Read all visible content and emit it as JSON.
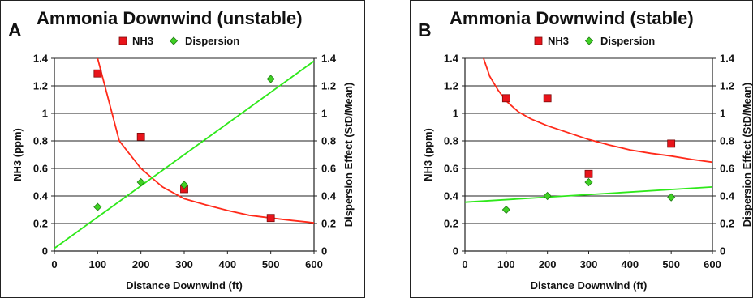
{
  "chart_data": [
    {
      "type": "scatter",
      "panel_label": "A",
      "title": "Ammonia Downwind (unstable)",
      "xlabel": "Distance Downwind (ft)",
      "ylabel": "NH3 (ppm)",
      "y2label": "Dispersion Effect (StD/Mean)",
      "xlim": [
        0,
        600
      ],
      "ylim": [
        0,
        1.4
      ],
      "y2lim": [
        0,
        1.4
      ],
      "xticks": [
        0,
        100,
        200,
        300,
        400,
        500,
        600
      ],
      "yticks": [
        "0",
        "0.2",
        "0.4",
        "0.6",
        "0.8",
        "1",
        "1.2",
        "1.4"
      ],
      "grid": "horizontal",
      "legend_position": "top",
      "series": [
        {
          "name": "NH3",
          "marker": "square",
          "color": "#e8141b",
          "axis": "left",
          "x": [
            100,
            200,
            300,
            500
          ],
          "y": [
            1.29,
            0.83,
            0.45,
            0.24
          ]
        },
        {
          "name": "Dispersion",
          "marker": "diamond",
          "color": "#3fd124",
          "axis": "right",
          "x": [
            100,
            200,
            300,
            500
          ],
          "y": [
            0.32,
            0.5,
            0.48,
            1.25
          ]
        }
      ],
      "trendlines": [
        {
          "series": "NH3",
          "kind": "power",
          "color": "#ff2a1a",
          "x": [
            100,
            150,
            200,
            250,
            300,
            350,
            400,
            450,
            500,
            550,
            600
          ],
          "y": [
            1.4,
            0.8,
            0.6,
            0.465,
            0.38,
            0.335,
            0.295,
            0.26,
            0.24,
            0.222,
            0.205
          ]
        },
        {
          "series": "Dispersion",
          "kind": "linear",
          "color": "#2ee81a",
          "x": [
            0,
            600
          ],
          "y": [
            0.02,
            1.38
          ]
        }
      ]
    },
    {
      "type": "scatter",
      "panel_label": "B",
      "title": "Ammonia Downwind (stable)",
      "xlabel": "Distance Downwind (ft)",
      "ylabel": "NH3 (ppm)",
      "y2label": "Dispersion Effect (StD/Mean)",
      "xlim": [
        0,
        600
      ],
      "ylim": [
        0,
        1.4
      ],
      "y2lim": [
        0,
        1.4
      ],
      "xticks": [
        0,
        100,
        200,
        300,
        400,
        500,
        600
      ],
      "yticks": [
        "0",
        "0.2",
        "0.4",
        "0.6",
        "0.8",
        "1",
        "1.2",
        "1.4"
      ],
      "grid": "horizontal",
      "legend_position": "top",
      "series": [
        {
          "name": "NH3",
          "marker": "square",
          "color": "#e8141b",
          "axis": "left",
          "x": [
            100,
            200,
            300,
            500
          ],
          "y": [
            1.11,
            1.11,
            0.56,
            0.78
          ]
        },
        {
          "name": "Dispersion",
          "marker": "diamond",
          "color": "#3fd124",
          "axis": "right",
          "x": [
            100,
            200,
            300,
            500
          ],
          "y": [
            0.3,
            0.4,
            0.5,
            0.39
          ]
        }
      ],
      "trendlines": [
        {
          "series": "NH3",
          "kind": "power",
          "color": "#ff2a1a",
          "x": [
            45,
            60,
            80,
            100,
            130,
            160,
            200,
            250,
            300,
            350,
            400,
            450,
            500,
            550,
            600
          ],
          "y": [
            1.4,
            1.27,
            1.17,
            1.09,
            1.01,
            0.96,
            0.91,
            0.86,
            0.81,
            0.77,
            0.735,
            0.71,
            0.69,
            0.665,
            0.645
          ]
        },
        {
          "series": "Dispersion",
          "kind": "linear",
          "color": "#2ee81a",
          "x": [
            0,
            600
          ],
          "y": [
            0.355,
            0.465
          ]
        }
      ]
    }
  ]
}
